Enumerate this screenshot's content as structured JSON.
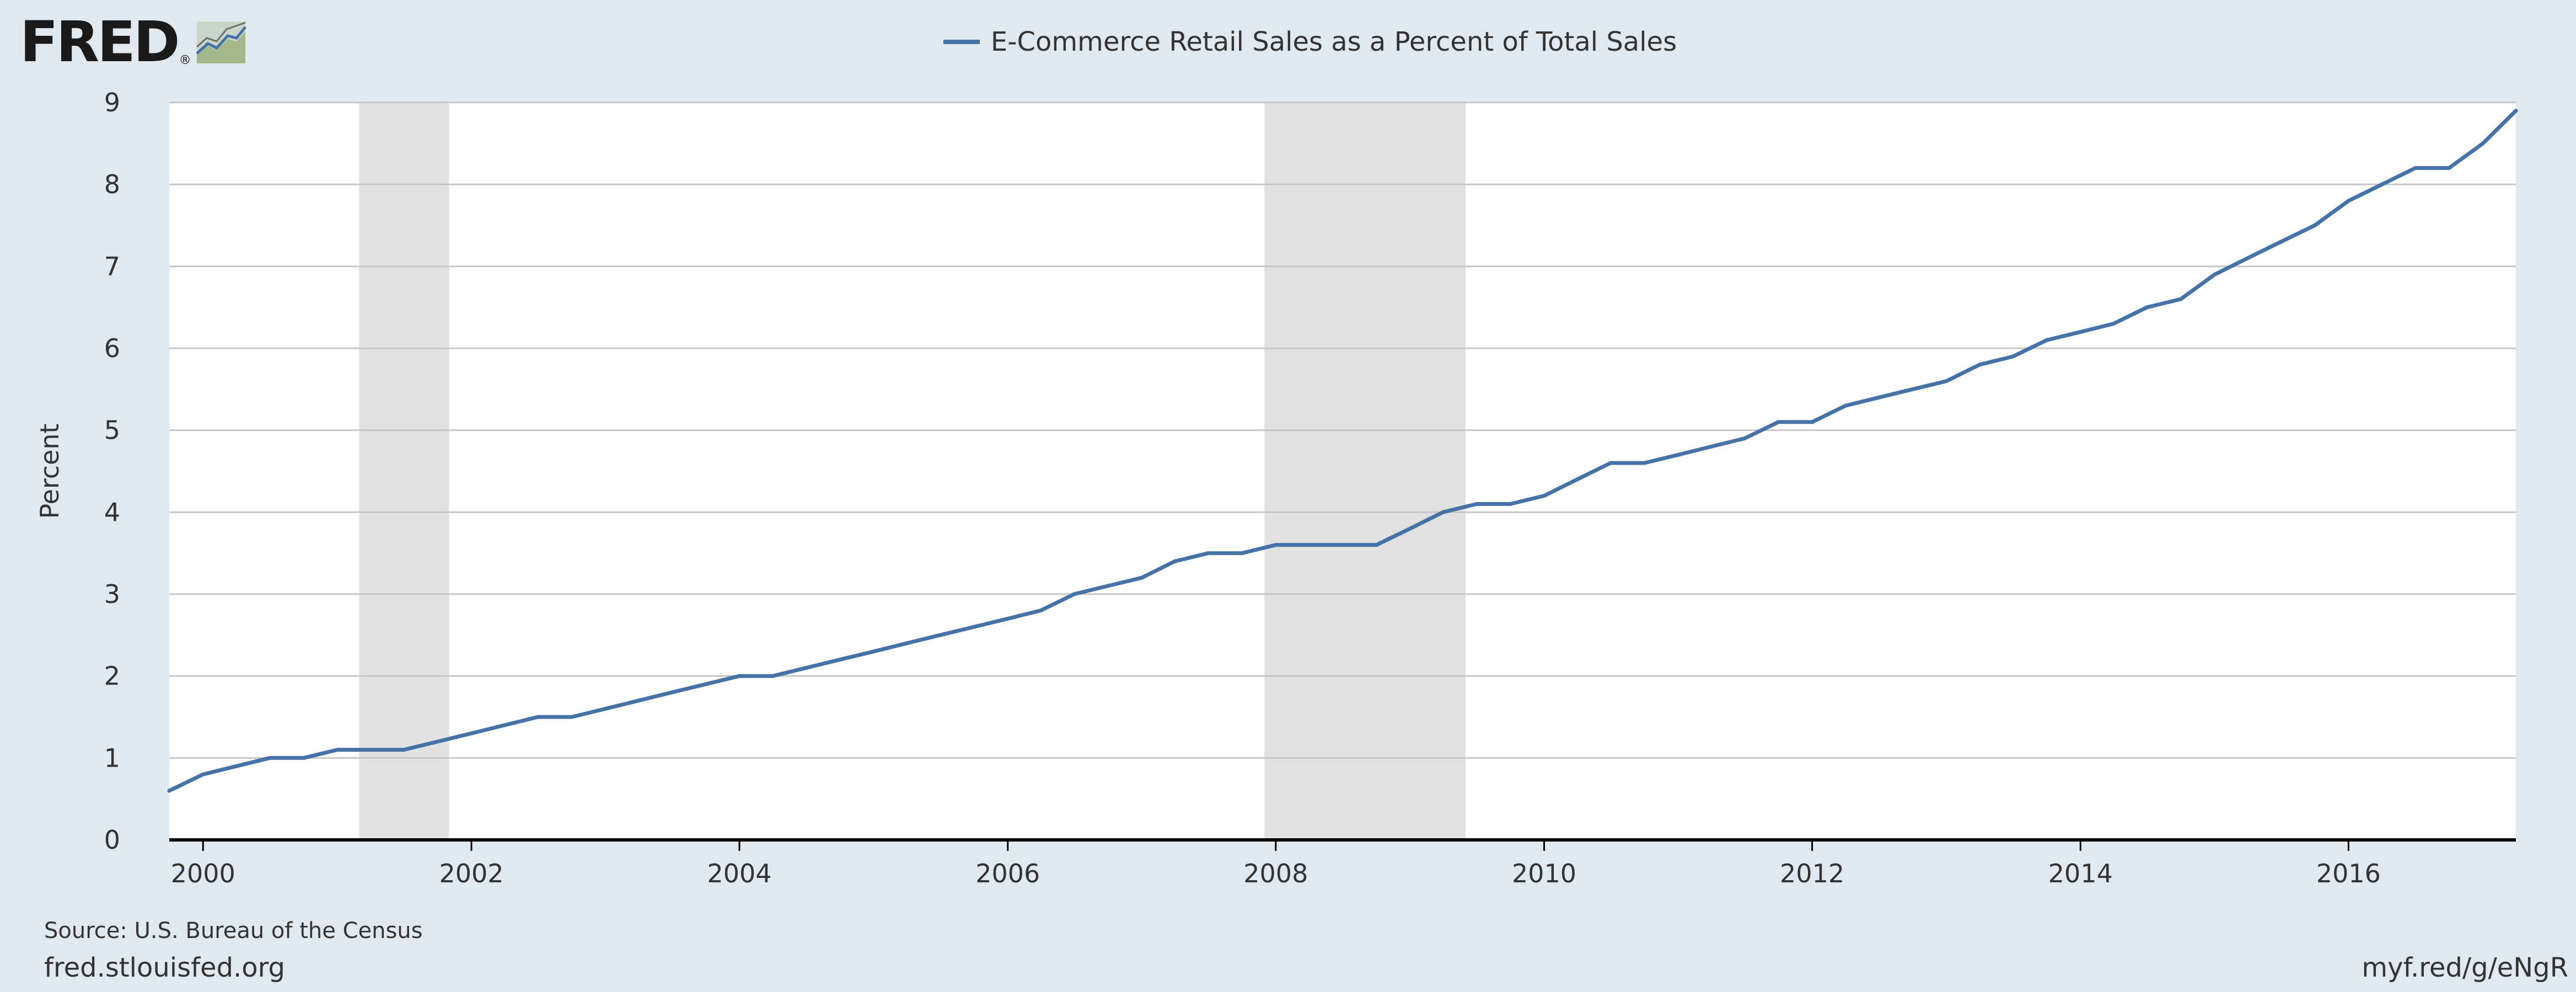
{
  "brand": {
    "logo_text": "FRED",
    "logo_mark": "®"
  },
  "legend": {
    "label": "E-Commerce Retail Sales as a Percent of Total Sales",
    "color": "#4572a7"
  },
  "footer": {
    "source": "Source: U.S. Bureau of the Census",
    "site": "fred.stlouisfed.org",
    "short_link": "myf.red/g/eNgR"
  },
  "colors": {
    "background": "#e1e9f0",
    "plot_bg": "#ffffff",
    "recession": "#e1e1e1",
    "line": "#4572a7",
    "grid": "#c8c8c8"
  },
  "chart_data": {
    "type": "line",
    "title": "",
    "xlabel": "",
    "ylabel": "Percent",
    "xlim": [
      "1999-10-01",
      "2017-04-01"
    ],
    "ylim": [
      0,
      9
    ],
    "y_ticks": [
      0,
      1,
      2,
      3,
      4,
      5,
      6,
      7,
      8,
      9
    ],
    "x_ticks": [
      "2000",
      "2002",
      "2004",
      "2006",
      "2008",
      "2010",
      "2012",
      "2014",
      "2016"
    ],
    "grid": true,
    "legend_position": "top-center",
    "recessions": [
      {
        "start": "2001-03-01",
        "end": "2001-11-01"
      },
      {
        "start": "2007-12-01",
        "end": "2009-06-01"
      }
    ],
    "series": [
      {
        "name": "E-Commerce Retail Sales as a Percent of Total Sales",
        "x": [
          "1999-10-01",
          "2000-01-01",
          "2000-04-01",
          "2000-07-01",
          "2000-10-01",
          "2001-01-01",
          "2001-04-01",
          "2001-07-01",
          "2001-10-01",
          "2002-01-01",
          "2002-04-01",
          "2002-07-01",
          "2002-10-01",
          "2003-01-01",
          "2003-04-01",
          "2003-07-01",
          "2003-10-01",
          "2004-01-01",
          "2004-04-01",
          "2004-07-01",
          "2004-10-01",
          "2005-01-01",
          "2005-04-01",
          "2005-07-01",
          "2005-10-01",
          "2006-01-01",
          "2006-04-01",
          "2006-07-01",
          "2006-10-01",
          "2007-01-01",
          "2007-04-01",
          "2007-07-01",
          "2007-10-01",
          "2008-01-01",
          "2008-04-01",
          "2008-07-01",
          "2008-10-01",
          "2009-01-01",
          "2009-04-01",
          "2009-07-01",
          "2009-10-01",
          "2010-01-01",
          "2010-04-01",
          "2010-07-01",
          "2010-10-01",
          "2011-01-01",
          "2011-04-01",
          "2011-07-01",
          "2011-10-01",
          "2012-01-01",
          "2012-04-01",
          "2012-07-01",
          "2012-10-01",
          "2013-01-01",
          "2013-04-01",
          "2013-07-01",
          "2013-10-01",
          "2014-01-01",
          "2014-04-01",
          "2014-07-01",
          "2014-10-01",
          "2015-01-01",
          "2015-04-01",
          "2015-07-01",
          "2015-10-01",
          "2016-01-01",
          "2016-04-01",
          "2016-07-01",
          "2016-10-01",
          "2017-01-01",
          "2017-04-01"
        ],
        "values": [
          0.6,
          0.8,
          0.9,
          1.0,
          1.0,
          1.1,
          1.1,
          1.1,
          1.2,
          1.3,
          1.4,
          1.5,
          1.5,
          1.6,
          1.7,
          1.8,
          1.9,
          2.0,
          2.0,
          2.1,
          2.2,
          2.3,
          2.4,
          2.5,
          2.6,
          2.7,
          2.8,
          3.0,
          3.1,
          3.2,
          3.4,
          3.5,
          3.5,
          3.6,
          3.6,
          3.6,
          3.6,
          3.8,
          4.0,
          4.1,
          4.1,
          4.2,
          4.4,
          4.6,
          4.6,
          4.7,
          4.8,
          4.9,
          5.1,
          5.1,
          5.3,
          5.4,
          5.5,
          5.6,
          5.8,
          5.9,
          6.1,
          6.2,
          6.3,
          6.5,
          6.6,
          6.9,
          7.1,
          7.3,
          7.5,
          7.8,
          8.0,
          8.2,
          8.2,
          8.5,
          8.9
        ]
      }
    ]
  }
}
